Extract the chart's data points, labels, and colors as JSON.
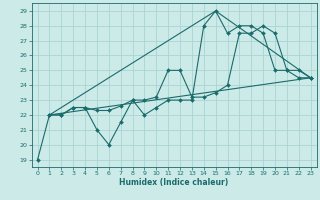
{
  "xlabel": "Humidex (Indice chaleur)",
  "bg_color": "#cceae8",
  "grid_color": "#aad4d2",
  "line_color": "#1a6b6b",
  "xlim": [
    -0.5,
    23.5
  ],
  "ylim": [
    18.5,
    29.5
  ],
  "yticks": [
    19,
    20,
    21,
    22,
    23,
    24,
    25,
    26,
    27,
    28,
    29
  ],
  "xticks": [
    0,
    1,
    2,
    3,
    4,
    5,
    6,
    7,
    8,
    9,
    10,
    11,
    12,
    13,
    14,
    15,
    16,
    17,
    18,
    19,
    20,
    21,
    22,
    23
  ],
  "line1_x": [
    0,
    1,
    2,
    3,
    4,
    5,
    6,
    7,
    8,
    9,
    10,
    11,
    12,
    13,
    14,
    15,
    16,
    17,
    18,
    19,
    20,
    21,
    22,
    23
  ],
  "line1_y": [
    19,
    22,
    22,
    22.5,
    22.5,
    21,
    20,
    21.5,
    23,
    22,
    22.5,
    23,
    23,
    23,
    28,
    29,
    27.5,
    28,
    28,
    27.5,
    25,
    25,
    24.5,
    24.5
  ],
  "line2_x": [
    1,
    2,
    3,
    4,
    5,
    6,
    7,
    8,
    9,
    10,
    11,
    12,
    13,
    14,
    15,
    16,
    17,
    18,
    19,
    20,
    21,
    22,
    23
  ],
  "line2_y": [
    22,
    22,
    22.5,
    22.5,
    22.3,
    22.3,
    22.6,
    23,
    23,
    23.2,
    25,
    25,
    23.2,
    23.2,
    23.5,
    24,
    27.5,
    27.5,
    28,
    27.5,
    25,
    25,
    24.5
  ],
  "line3_x": [
    1,
    23
  ],
  "line3_y": [
    22,
    24.5
  ],
  "line4_x": [
    1,
    15,
    23
  ],
  "line4_y": [
    22,
    29,
    24.5
  ]
}
